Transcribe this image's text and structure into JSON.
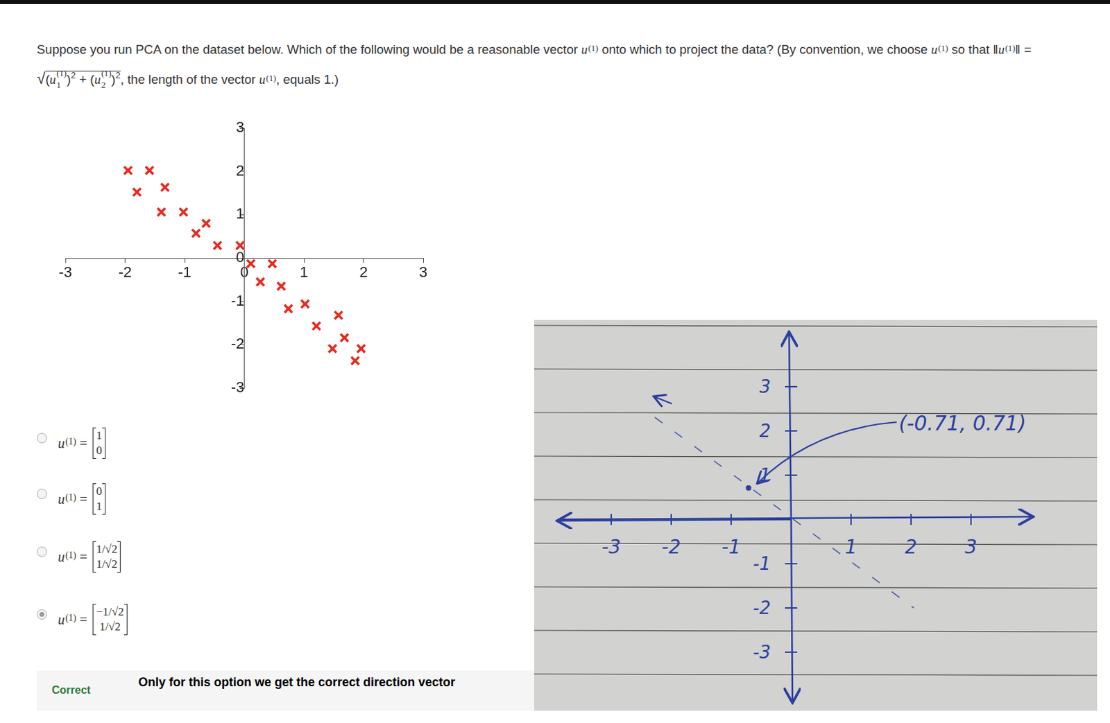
{
  "question": [
    {
      "text": "Suppose you run PCA on the dataset below. Which of the following would be a reasonable vector "
    },
    {
      "var": "u",
      "sup": "(1)"
    },
    {
      "text": " onto which to project the data? (By convention, we choose "
    },
    {
      "var": "u",
      "sup": "(1)"
    },
    {
      "text": " so that "
    },
    {
      "text": "‖"
    },
    {
      "var": "u",
      "sup": "(1)"
    },
    {
      "text": "‖ = "
    },
    {
      "sqrt": [
        {
          "text": "("
        },
        {
          "var": "u",
          "sup": "(1)",
          "sub": "1"
        },
        {
          "text": ")"
        },
        {
          "pow": "2"
        },
        {
          "text": " + ("
        },
        {
          "var": "u",
          "sup": "(1)",
          "sub": "2"
        },
        {
          "text": ")"
        },
        {
          "pow": "2"
        }
      ]
    },
    {
      "text": ", the length of the vector "
    },
    {
      "var": "u",
      "sup": "(1)"
    },
    {
      "text": ", equals 1.)"
    }
  ],
  "chart_data": {
    "type": "scatter",
    "x": [
      -1.95,
      -1.59,
      -1.8,
      -1.33,
      -1.39,
      -1.02,
      -0.64,
      -0.81,
      -0.45,
      -0.07,
      0.11,
      0.47,
      0.27,
      0.62,
      0.74,
      1.02,
      1.21,
      1.58,
      1.48,
      1.68,
      1.96,
      1.86
    ],
    "values": [
      2.02,
      2.02,
      1.52,
      1.63,
      1.06,
      1.06,
      0.8,
      0.57,
      0.29,
      0.29,
      -0.13,
      -0.13,
      -0.55,
      -0.65,
      -1.17,
      -1.06,
      -1.57,
      -1.32,
      -2.09,
      -1.84,
      -2.09,
      -2.37
    ],
    "color": "#e8281e",
    "marker": "x",
    "xlim": [
      -3,
      3
    ],
    "ylim": [
      -3,
      3
    ],
    "xticks": [
      -3,
      -2,
      -1,
      0,
      1,
      2,
      3
    ],
    "yticks": [
      -3,
      -2,
      -1,
      0,
      1,
      2,
      3
    ],
    "grid": false
  },
  "options": [
    {
      "label": [
        {
          "var": "u",
          "sup": "(1)"
        },
        {
          "text": " ="
        }
      ],
      "vector": [
        "1",
        "0"
      ]
    },
    {
      "label": [
        {
          "var": "u",
          "sup": "(1)"
        },
        {
          "text": " ="
        }
      ],
      "vector": [
        "0",
        "1"
      ]
    },
    {
      "label": [
        {
          "var": "u",
          "sup": "(1)"
        },
        {
          "text": " ="
        }
      ],
      "vector": [
        "1/√2",
        "1/√2"
      ]
    },
    {
      "label": [
        {
          "var": "u",
          "sup": "(1)"
        },
        {
          "text": " ="
        }
      ],
      "vector": [
        "−1/√2",
        "1/√2"
      ],
      "selected": true
    }
  ],
  "feedback": {
    "status": "Correct",
    "text": "Only for this option we get the correct direction vector"
  },
  "note": {
    "x_ticks": [
      -3,
      -2,
      -1,
      1,
      2,
      3
    ],
    "y_ticks": [
      3,
      2,
      1,
      -1,
      -2,
      -3
    ],
    "point": {
      "x": -0.71,
      "y": 0.71,
      "label": "(-0.71, 0.71)"
    }
  }
}
